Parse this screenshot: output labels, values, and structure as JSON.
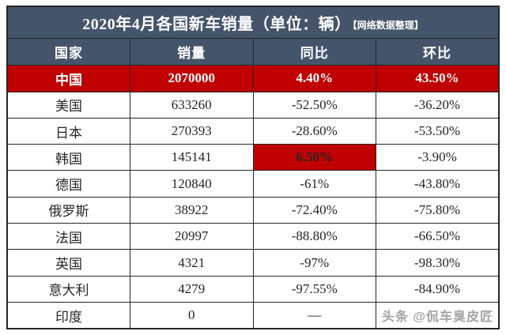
{
  "chart_data": {
    "type": "table",
    "title": "2020年4月各国新车销量（单位：辆）",
    "subtitle": "【网络数据整理】",
    "columns": [
      "国家",
      "销量",
      "同比",
      "环比"
    ],
    "rows": [
      {
        "country": "中国",
        "sales": "2070000",
        "yoy": "4.40%",
        "mom": "43.50%",
        "highlight": "row"
      },
      {
        "country": "美国",
        "sales": "633260",
        "yoy": "-52.50%",
        "mom": "-36.20%",
        "highlight": null
      },
      {
        "country": "日本",
        "sales": "270393",
        "yoy": "-28.60%",
        "mom": "-53.50%",
        "highlight": null
      },
      {
        "country": "韩国",
        "sales": "145141",
        "yoy": "6.50%",
        "mom": "-3.90%",
        "highlight": "yoy-cell"
      },
      {
        "country": "德国",
        "sales": "120840",
        "yoy": "-61%",
        "mom": "-43.80%",
        "highlight": null
      },
      {
        "country": "俄罗斯",
        "sales": "38922",
        "yoy": "-72.40%",
        "mom": "-75.80%",
        "highlight": null
      },
      {
        "country": "法国",
        "sales": "20997",
        "yoy": "-88.80%",
        "mom": "-66.50%",
        "highlight": null
      },
      {
        "country": "英国",
        "sales": "4321",
        "yoy": "-97%",
        "mom": "-98.30%",
        "highlight": null
      },
      {
        "country": "意大利",
        "sales": "4279",
        "yoy": "-97.55%",
        "mom": "-84.90%",
        "highlight": null
      },
      {
        "country": "印度",
        "sales": "0",
        "yoy": "—",
        "mom": "",
        "highlight": null
      }
    ]
  },
  "watermark": "头条 @侃车臭皮匠",
  "colors": {
    "header_bg": "#44546a",
    "highlight_bg": "#c00000",
    "text": "#262626",
    "border": "#262626",
    "watermark": "#a3a3a3"
  }
}
